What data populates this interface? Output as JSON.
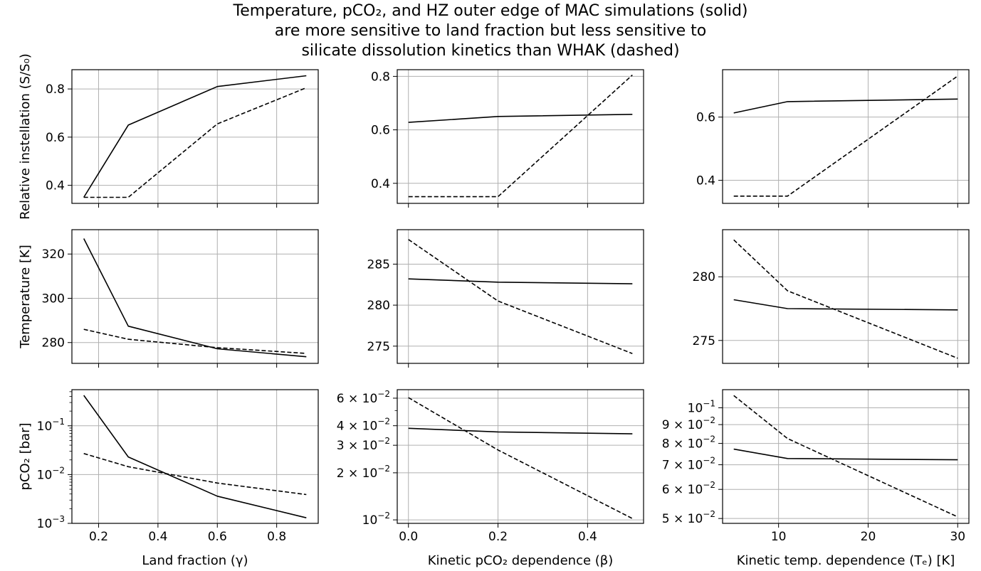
{
  "title_lines": [
    "Temperature, pCO₂, and HZ outer edge of MAC simulations (solid)",
    "are more sensitive to land fraction but less sensitive to",
    "silicate dissolution kinetics than WHAK (dashed)"
  ],
  "chart_data": [
    {
      "type": "line",
      "row": 0,
      "col": 0,
      "xlabel": "",
      "ylabel": "Relative instellation (S/S₀)",
      "x": [
        0.15,
        0.3,
        0.6,
        0.9
      ],
      "xlim": [
        0.11,
        0.94
      ],
      "ylim": [
        0.325,
        0.88
      ],
      "yscale": "linear",
      "xticks": [
        0.2,
        0.4,
        0.6,
        0.8
      ],
      "xticklabels": [],
      "yticks": [
        0.4,
        0.6,
        0.8
      ],
      "yticklabels": [
        "0.4",
        "0.6",
        "0.8"
      ],
      "grid": true,
      "series": [
        {
          "style": "solid",
          "values": [
            0.35,
            0.65,
            0.81,
            0.855
          ]
        },
        {
          "style": "dashed",
          "values": [
            0.35,
            0.35,
            0.655,
            0.805
          ]
        }
      ]
    },
    {
      "type": "line",
      "row": 0,
      "col": 1,
      "xlabel": "",
      "ylabel": "",
      "x": [
        0.0,
        0.2,
        0.5
      ],
      "xlim": [
        -0.025,
        0.525
      ],
      "ylim": [
        0.325,
        0.825
      ],
      "yscale": "linear",
      "xticks": [
        0.0,
        0.2,
        0.4
      ],
      "xticklabels": [],
      "yticks": [
        0.4,
        0.6,
        0.8
      ],
      "yticklabels": [
        "0.4",
        "0.6",
        "0.8"
      ],
      "grid": true,
      "series": [
        {
          "style": "solid",
          "values": [
            0.628,
            0.65,
            0.658
          ]
        },
        {
          "style": "dashed",
          "values": [
            0.35,
            0.35,
            0.805
          ]
        }
      ]
    },
    {
      "type": "line",
      "row": 0,
      "col": 2,
      "xlabel": "",
      "ylabel": "",
      "x": [
        5,
        11,
        30
      ],
      "xlim": [
        3.75,
        31.25
      ],
      "ylim": [
        0.327,
        0.75
      ],
      "yscale": "linear",
      "xticks": [
        10,
        20,
        30
      ],
      "xticklabels": [],
      "yticks": [
        0.4,
        0.6
      ],
      "yticklabels": [
        "0.4",
        "0.6"
      ],
      "grid": true,
      "series": [
        {
          "style": "solid",
          "values": [
            0.613,
            0.649,
            0.657
          ]
        },
        {
          "style": "dashed",
          "values": [
            0.35,
            0.35,
            0.73
          ]
        }
      ]
    },
    {
      "type": "line",
      "row": 1,
      "col": 0,
      "xlabel": "",
      "ylabel": "Temperature [K]",
      "x": [
        0.15,
        0.3,
        0.6,
        0.9
      ],
      "xlim": [
        0.11,
        0.94
      ],
      "ylim": [
        270.6,
        331.0
      ],
      "yscale": "linear",
      "xticks": [
        0.2,
        0.4,
        0.6,
        0.8
      ],
      "xticklabels": [],
      "yticks": [
        280,
        300,
        320
      ],
      "yticklabels": [
        "280",
        "300",
        "320"
      ],
      "grid": true,
      "series": [
        {
          "style": "solid",
          "values": [
            327.0,
            287.4,
            277.2,
            273.6
          ]
        },
        {
          "style": "dashed",
          "values": [
            286.0,
            281.5,
            277.7,
            275.1
          ]
        }
      ]
    },
    {
      "type": "line",
      "row": 1,
      "col": 1,
      "xlabel": "",
      "ylabel": "",
      "x": [
        0.0,
        0.2,
        0.5
      ],
      "xlim": [
        -0.025,
        0.525
      ],
      "ylim": [
        272.9,
        289.2
      ],
      "yscale": "linear",
      "xticks": [
        0.0,
        0.2,
        0.4
      ],
      "xticklabels": [],
      "yticks": [
        275,
        280,
        285
      ],
      "yticklabels": [
        "275",
        "280",
        "285"
      ],
      "grid": true,
      "series": [
        {
          "style": "solid",
          "values": [
            283.2,
            282.8,
            282.6
          ]
        },
        {
          "style": "dashed",
          "values": [
            288.0,
            280.5,
            274.1
          ]
        }
      ]
    },
    {
      "type": "line",
      "row": 1,
      "col": 2,
      "xlabel": "",
      "ylabel": "",
      "x": [
        5,
        11,
        30
      ],
      "xlim": [
        3.75,
        31.25
      ],
      "ylim": [
        273.2,
        283.7
      ],
      "yscale": "linear",
      "xticks": [
        10,
        20,
        30
      ],
      "xticklabels": [],
      "yticks": [
        275,
        280
      ],
      "yticklabels": [
        "275",
        "280"
      ],
      "grid": true,
      "series": [
        {
          "style": "solid",
          "values": [
            278.2,
            277.5,
            277.4
          ]
        },
        {
          "style": "dashed",
          "values": [
            282.9,
            278.9,
            273.6
          ]
        }
      ]
    },
    {
      "type": "line",
      "row": 2,
      "col": 0,
      "xlabel": "Land fraction (γ)",
      "ylabel": "pCO₂ [bar]",
      "x": [
        0.15,
        0.3,
        0.6,
        0.9
      ],
      "xlim": [
        0.11,
        0.94
      ],
      "ylim": [
        0.001,
        0.55
      ],
      "yscale": "log",
      "xticks": [
        0.2,
        0.4,
        0.6,
        0.8
      ],
      "xticklabels": [
        "0.2",
        "0.4",
        "0.6",
        "0.8"
      ],
      "yticks": [
        0.001,
        0.01,
        0.1
      ],
      "yticklabels": [
        [
          "10",
          "−3"
        ],
        [
          "10",
          "−2"
        ],
        [
          "10",
          "−1"
        ]
      ],
      "grid": true,
      "series": [
        {
          "style": "solid",
          "values": [
            0.42,
            0.023,
            0.0036,
            0.0013
          ]
        },
        {
          "style": "dashed",
          "values": [
            0.027,
            0.0145,
            0.0067,
            0.0039
          ]
        }
      ]
    },
    {
      "type": "line",
      "row": 2,
      "col": 1,
      "xlabel": "Kinetic pCO₂ dependence (β)",
      "ylabel": "",
      "x": [
        0.0,
        0.2,
        0.5
      ],
      "xlim": [
        -0.025,
        0.525
      ],
      "ylim": [
        0.0095,
        0.068
      ],
      "yscale": "log",
      "xticks": [
        0.0,
        0.2,
        0.4
      ],
      "xticklabels": [
        "0.0",
        "0.2",
        "0.4"
      ],
      "yticks": [
        0.01,
        0.02,
        0.03,
        0.04,
        0.06
      ],
      "yticklabels": [
        [
          "10",
          "−2"
        ],
        [
          "2 × 10",
          "−2"
        ],
        [
          "3 × 10",
          "−2"
        ],
        [
          "4 × 10",
          "−2"
        ],
        [
          "6 × 10",
          "−2"
        ]
      ],
      "grid": true,
      "series": [
        {
          "style": "solid",
          "values": [
            0.0385,
            0.0365,
            0.0355
          ]
        },
        {
          "style": "dashed",
          "values": [
            0.0605,
            0.028,
            0.0102
          ]
        }
      ]
    },
    {
      "type": "line",
      "row": 2,
      "col": 2,
      "xlabel": "Kinetic temp. dependence (Tₑ) [K]",
      "ylabel": "",
      "x": [
        5,
        11,
        30
      ],
      "xlim": [
        3.75,
        31.25
      ],
      "ylim": [
        0.0485,
        0.112
      ],
      "yscale": "log",
      "xticks": [
        10,
        20,
        30
      ],
      "xticklabels": [
        "10",
        "20",
        "30"
      ],
      "yticks": [
        0.05,
        0.06,
        0.07,
        0.08,
        0.09,
        0.1
      ],
      "yticklabels": [
        [
          "5 × 10",
          "−2"
        ],
        [
          "6 × 10",
          "−2"
        ],
        [
          "7 × 10",
          "−2"
        ],
        [
          "8 × 10",
          "−2"
        ],
        [
          "9 × 10",
          "−2"
        ],
        [
          "10",
          "−1"
        ]
      ],
      "grid": true,
      "series": [
        {
          "style": "solid",
          "values": [
            0.0772,
            0.0728,
            0.0722
          ]
        },
        {
          "style": "dashed",
          "values": [
            0.108,
            0.0825,
            0.0505
          ]
        }
      ]
    }
  ]
}
